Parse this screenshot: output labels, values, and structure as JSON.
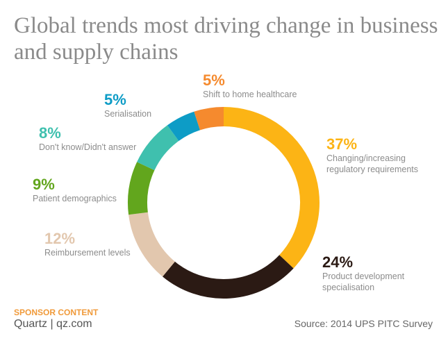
{
  "title_lines": [
    "Global trends most driving change in business",
    "and supply chains"
  ],
  "footer": {
    "sponsor": "SPONSOR CONTENT",
    "brand": "Quartz | qz.com",
    "source": "Source: 2014 UPS PITC Survey"
  },
  "chart_data": {
    "type": "pie",
    "donut": true,
    "title": "Global trends most driving change in business and supply chains",
    "slices": [
      {
        "label": "Changing/increasing\nregulatory requirements",
        "value": 37,
        "pct_label": "37%",
        "color": "#fcb415"
      },
      {
        "label": "Product development\nspecialisation",
        "value": 24,
        "pct_label": "24%",
        "color": "#2b1a14"
      },
      {
        "label": "Reimbursement levels",
        "value": 12,
        "pct_label": "12%",
        "color": "#e2c7ae"
      },
      {
        "label": "Patient demographics",
        "value": 9,
        "pct_label": "9%",
        "color": "#62a61d"
      },
      {
        "label": "Don't know/Didn't answer",
        "value": 8,
        "pct_label": "8%",
        "color": "#3fc0ae"
      },
      {
        "label": "Serialisation",
        "value": 5,
        "pct_label": "5%",
        "color": "#0d9cc6"
      },
      {
        "label": "Shift to home healthcare",
        "value": 5,
        "pct_label": "5%",
        "color": "#f58a2e"
      }
    ]
  }
}
